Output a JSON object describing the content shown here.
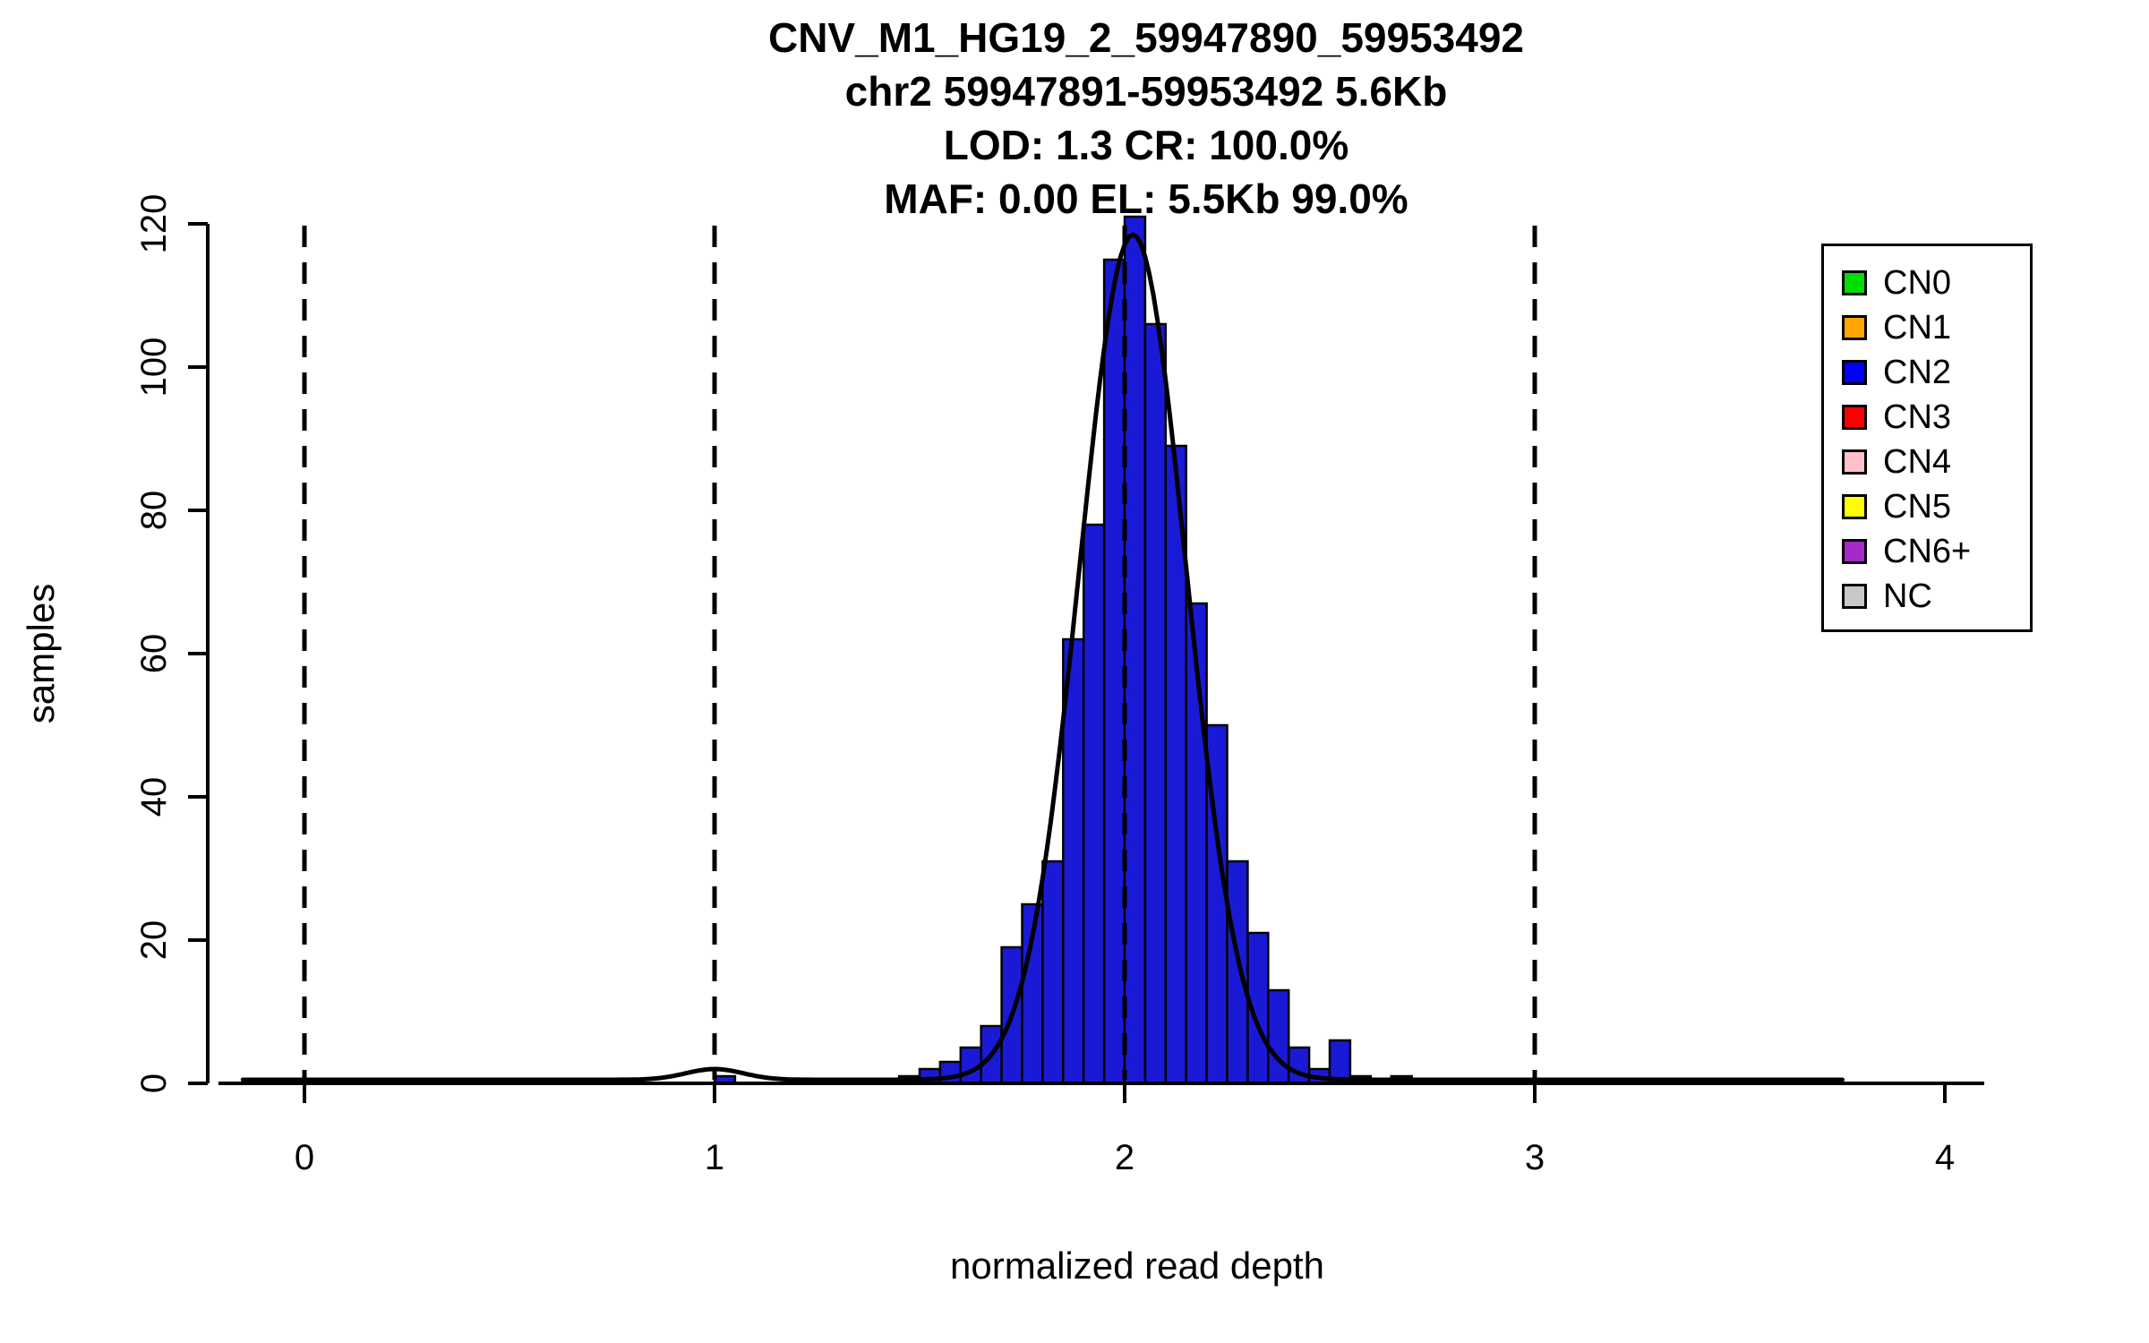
{
  "chart_data": {
    "type": "bar",
    "subtype": "histogram",
    "title": "CNV_M1_HG19_2_59947890_59953492",
    "subtitle_lines": [
      "chr2 59947891-59953492 5.6Kb",
      "LOD: 1.3 CR: 100.0%",
      "MAF: 0.00 EL: 5.5Kb 99.0%"
    ],
    "xlabel": "normalized read depth",
    "ylabel": "samples",
    "xlim": [
      -0.2,
      4.2
    ],
    "ylim": [
      0,
      120
    ],
    "x_ticks": [
      0,
      1,
      2,
      3,
      4
    ],
    "y_ticks": [
      0,
      20,
      40,
      60,
      80,
      100,
      120
    ],
    "grid": false,
    "bar_color": "#1A1AD6",
    "bar_border": "#000000",
    "bin_width": 0.05,
    "bins": [
      {
        "x": 1.0,
        "count": 1
      },
      {
        "x": 1.45,
        "count": 1
      },
      {
        "x": 1.5,
        "count": 2
      },
      {
        "x": 1.55,
        "count": 3
      },
      {
        "x": 1.6,
        "count": 5
      },
      {
        "x": 1.65,
        "count": 8
      },
      {
        "x": 1.7,
        "count": 19
      },
      {
        "x": 1.75,
        "count": 25
      },
      {
        "x": 1.8,
        "count": 31
      },
      {
        "x": 1.85,
        "count": 62
      },
      {
        "x": 1.9,
        "count": 78
      },
      {
        "x": 1.95,
        "count": 115
      },
      {
        "x": 2.0,
        "count": 121
      },
      {
        "x": 2.05,
        "count": 106
      },
      {
        "x": 2.1,
        "count": 89
      },
      {
        "x": 2.15,
        "count": 67
      },
      {
        "x": 2.2,
        "count": 50
      },
      {
        "x": 2.25,
        "count": 31
      },
      {
        "x": 2.3,
        "count": 21
      },
      {
        "x": 2.35,
        "count": 13
      },
      {
        "x": 2.4,
        "count": 5
      },
      {
        "x": 2.45,
        "count": 2
      },
      {
        "x": 2.5,
        "count": 6
      },
      {
        "x": 2.55,
        "count": 1
      },
      {
        "x": 2.65,
        "count": 1
      }
    ],
    "dashed_guides_x": [
      0,
      1,
      2,
      3
    ],
    "fit_curve": {
      "mean": 2.02,
      "sd": 0.13,
      "peak": 118,
      "secondary_mean": 1.0,
      "secondary_peak": 1.5,
      "baseline": 0.5,
      "x_start": -0.15,
      "x_end": 3.75
    },
    "legend": {
      "position": "top-right",
      "items": [
        {
          "label": "CN0",
          "color": "#00DD00"
        },
        {
          "label": "CN1",
          "color": "#FFA500"
        },
        {
          "label": "CN2",
          "color": "#0000FF"
        },
        {
          "label": "CN3",
          "color": "#FF0000"
        },
        {
          "label": "CN4",
          "color": "#FFC0CB"
        },
        {
          "label": "CN5",
          "color": "#FFFF00"
        },
        {
          "label": "CN6+",
          "color": "#A52AC8"
        },
        {
          "label": "NC",
          "color": "#C8C8C8"
        }
      ]
    }
  }
}
